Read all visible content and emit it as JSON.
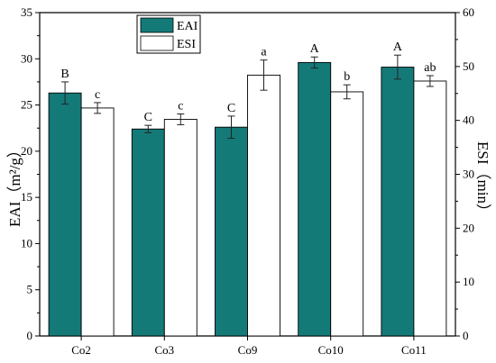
{
  "chart_data": {
    "type": "bar",
    "categories": [
      "Co2",
      "Co3",
      "Co9",
      "Co10",
      "Co11"
    ],
    "series": [
      {
        "name": "EAI",
        "axis": "left",
        "values": [
          26.3,
          22.4,
          22.6,
          29.6,
          29.1
        ],
        "errors": [
          1.2,
          0.4,
          1.2,
          0.6,
          1.3
        ],
        "significance": [
          "B",
          "C",
          "C",
          "A",
          "A"
        ],
        "color": "#137a78"
      },
      {
        "name": "ESI",
        "axis": "right",
        "values": [
          42.3,
          40.2,
          48.4,
          45.3,
          47.3
        ],
        "errors": [
          1.0,
          1.0,
          2.8,
          1.3,
          1.0
        ],
        "significance": [
          "c",
          "c",
          "a",
          "b",
          "ab"
        ],
        "color": "#ffffff"
      }
    ],
    "ylabel": "EAI（m²/g）",
    "y2label": "ESI（min）",
    "ylim": [
      0,
      35
    ],
    "y2lim": [
      0,
      60
    ],
    "yticks": [
      "0",
      "5",
      "10",
      "15",
      "20",
      "25",
      "30",
      "35"
    ],
    "y2ticks": [
      "0",
      "10",
      "20",
      "30",
      "40",
      "50",
      "60"
    ],
    "legend": "top-left-inside",
    "grid": false
  }
}
